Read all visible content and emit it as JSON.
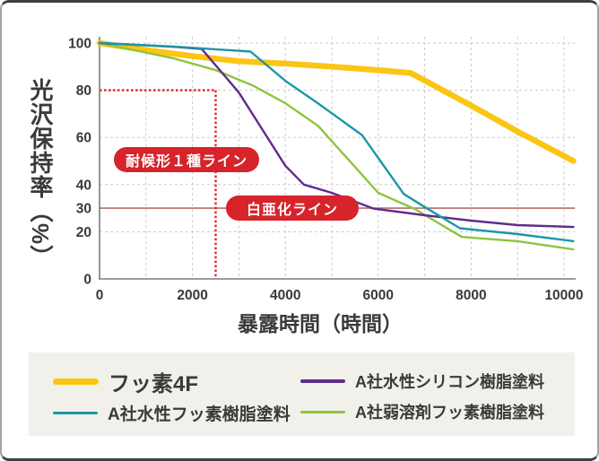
{
  "chart_data": {
    "type": "line",
    "title": "",
    "xlabel": "暴露時間（時間）",
    "ylabel": "光沢保持率（%）",
    "xlim": [
      0,
      10200
    ],
    "ylim": [
      0,
      100
    ],
    "x_ticks": [
      0,
      2000,
      4000,
      6000,
      8000,
      10000
    ],
    "y_ticks": [
      100,
      80,
      60,
      40,
      30,
      20,
      0
    ],
    "x_grid_step": 1000,
    "y_grid_values": [
      100,
      80,
      60,
      40,
      20
    ],
    "grid": "dashed",
    "legend_position": "bottom",
    "series": [
      {
        "name": "フッ素4F",
        "color": "#fbc513",
        "width": 6.5,
        "points": [
          [
            0,
            100
          ],
          [
            1000,
            97
          ],
          [
            2000,
            94.5
          ],
          [
            3000,
            92.3
          ],
          [
            4000,
            91.3
          ],
          [
            5000,
            90
          ],
          [
            6000,
            88.5
          ],
          [
            6700,
            87.3
          ],
          [
            8000,
            73.5
          ],
          [
            9000,
            62.5
          ],
          [
            10200,
            50
          ]
        ]
      },
      {
        "name": "A社弱溶剤フッ素樹脂塗料",
        "color": "#8ec43f",
        "width": 2.4,
        "points": [
          [
            0,
            100
          ],
          [
            1600,
            93.5
          ],
          [
            2500,
            88.5
          ],
          [
            3300,
            82
          ],
          [
            4000,
            74.5
          ],
          [
            4700,
            65
          ],
          [
            6000,
            36.5
          ],
          [
            6800,
            29.5
          ],
          [
            7800,
            17.8
          ],
          [
            9000,
            16
          ],
          [
            10200,
            12.5
          ]
        ]
      },
      {
        "name": "A社水性シリコン樹脂塗料",
        "color": "#5f2c8c",
        "width": 2.4,
        "points": [
          [
            0,
            100
          ],
          [
            1600,
            98.4
          ],
          [
            2200,
            97.5
          ],
          [
            3000,
            79
          ],
          [
            4000,
            48
          ],
          [
            4400,
            40
          ],
          [
            5000,
            36.5
          ],
          [
            5900,
            29.8
          ],
          [
            7000,
            27
          ],
          [
            8000,
            24.7
          ],
          [
            9000,
            22.8
          ],
          [
            10200,
            22
          ]
        ]
      },
      {
        "name": "A社水性フッ素樹脂塗料",
        "color": "#1d96a6",
        "width": 2.4,
        "points": [
          [
            0,
            100
          ],
          [
            1600,
            98.5
          ],
          [
            3250,
            96.4
          ],
          [
            4000,
            84
          ],
          [
            4700,
            74.5
          ],
          [
            5650,
            61
          ],
          [
            6550,
            36
          ],
          [
            7000,
            30.5
          ],
          [
            7760,
            21.5
          ],
          [
            9000,
            19
          ],
          [
            10200,
            16
          ]
        ]
      }
    ],
    "reference_lines": [
      {
        "label": "耐候形１種ライン",
        "type": "threshold-corner",
        "y_value": 80,
        "x_value": 2500,
        "color": "#e02227",
        "style": "dotted"
      },
      {
        "label": "白亜化ライン",
        "type": "horizontal",
        "y_value": 30,
        "color": "#b26f6f",
        "style": "solid"
      }
    ]
  },
  "legend": {
    "items": [
      {
        "label": "フッ素4F",
        "color": "#fbc513",
        "emphasis": true
      },
      {
        "label": "A社水性シリコン樹脂塗料",
        "color": "#5f2c8c",
        "emphasis": false
      },
      {
        "label": "A社水性フッ素樹脂塗料",
        "color": "#1d96a6",
        "emphasis": false
      },
      {
        "label": "A社弱溶剤フッ素樹脂塗料",
        "color": "#8ec43f",
        "emphasis": false
      }
    ]
  }
}
